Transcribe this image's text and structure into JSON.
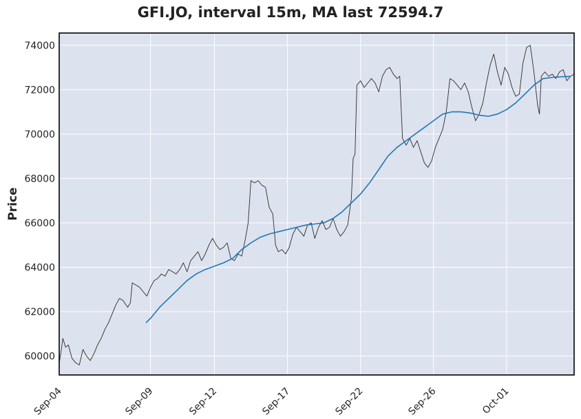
{
  "chart_data": {
    "type": "line",
    "title": "GFI.JO, interval 15m, MA last 72594.7",
    "ylabel": "Price",
    "xlabel": "",
    "ylim": [
      59150,
      74550
    ],
    "grid": true,
    "x_tick_labels": [
      "Sep-04",
      "Sep-09",
      "Sep-12",
      "Sep-17",
      "Sep-22",
      "Sep-26",
      "Oct-01"
    ],
    "y_tick_labels": [
      "60000",
      "62000",
      "64000",
      "66000",
      "68000",
      "70000",
      "72000",
      "74000"
    ],
    "y_ticks": [
      60000,
      62000,
      64000,
      66000,
      68000,
      70000,
      72000,
      74000
    ],
    "colors": {
      "background": "#dde2ef",
      "price": "#2b2b2b",
      "ma": "#1f77b4",
      "grid": "#ffffff",
      "frame": "#000000"
    },
    "series": [
      {
        "role": "price",
        "points": [
          [
            0,
            59700
          ],
          [
            0.1,
            60200
          ],
          [
            0.2,
            60800
          ],
          [
            0.35,
            60400
          ],
          [
            0.5,
            60500
          ],
          [
            0.7,
            59900
          ],
          [
            0.9,
            59700
          ],
          [
            1.1,
            59600
          ],
          [
            1.3,
            60300
          ],
          [
            1.5,
            60000
          ],
          [
            1.7,
            59800
          ],
          [
            1.9,
            60100
          ],
          [
            2.1,
            60500
          ],
          [
            2.3,
            60800
          ],
          [
            2.5,
            61200
          ],
          [
            2.7,
            61500
          ],
          [
            2.9,
            61900
          ],
          [
            3.1,
            62300
          ],
          [
            3.3,
            62600
          ],
          [
            3.5,
            62500
          ],
          [
            3.75,
            62200
          ],
          [
            3.9,
            62400
          ],
          [
            4.0,
            63300
          ],
          [
            4.2,
            63200
          ],
          [
            4.4,
            63100
          ],
          [
            4.6,
            62900
          ],
          [
            4.8,
            62700
          ],
          [
            5.0,
            63100
          ],
          [
            5.2,
            63400
          ],
          [
            5.4,
            63500
          ],
          [
            5.6,
            63700
          ],
          [
            5.8,
            63600
          ],
          [
            6.0,
            63900
          ],
          [
            6.2,
            63800
          ],
          [
            6.4,
            63700
          ],
          [
            6.6,
            63900
          ],
          [
            6.8,
            64200
          ],
          [
            7.0,
            63800
          ],
          [
            7.2,
            64300
          ],
          [
            7.4,
            64500
          ],
          [
            7.6,
            64700
          ],
          [
            7.8,
            64300
          ],
          [
            8.0,
            64600
          ],
          [
            8.2,
            65000
          ],
          [
            8.4,
            65300
          ],
          [
            8.6,
            65000
          ],
          [
            8.8,
            64800
          ],
          [
            9.0,
            64900
          ],
          [
            9.2,
            65100
          ],
          [
            9.4,
            64400
          ],
          [
            9.6,
            64300
          ],
          [
            9.8,
            64600
          ],
          [
            10.0,
            64500
          ],
          [
            10.2,
            65300
          ],
          [
            10.35,
            66000
          ],
          [
            10.5,
            67900
          ],
          [
            10.7,
            67800
          ],
          [
            10.9,
            67900
          ],
          [
            11.1,
            67700
          ],
          [
            11.3,
            67600
          ],
          [
            11.5,
            66700
          ],
          [
            11.7,
            66400
          ],
          [
            11.85,
            65000
          ],
          [
            12.0,
            64700
          ],
          [
            12.2,
            64800
          ],
          [
            12.4,
            64600
          ],
          [
            12.6,
            64900
          ],
          [
            12.8,
            65500
          ],
          [
            13.0,
            65800
          ],
          [
            13.2,
            65600
          ],
          [
            13.4,
            65400
          ],
          [
            13.6,
            65900
          ],
          [
            13.8,
            66000
          ],
          [
            14.0,
            65300
          ],
          [
            14.2,
            65800
          ],
          [
            14.4,
            66100
          ],
          [
            14.6,
            65700
          ],
          [
            14.8,
            65800
          ],
          [
            15.0,
            66200
          ],
          [
            15.2,
            65700
          ],
          [
            15.4,
            65400
          ],
          [
            15.6,
            65600
          ],
          [
            15.8,
            65900
          ],
          [
            16.0,
            67100
          ],
          [
            16.1,
            68900
          ],
          [
            16.2,
            69100
          ],
          [
            16.3,
            72200
          ],
          [
            16.5,
            72400
          ],
          [
            16.7,
            72100
          ],
          [
            16.9,
            72300
          ],
          [
            17.1,
            72500
          ],
          [
            17.3,
            72300
          ],
          [
            17.5,
            71900
          ],
          [
            17.7,
            72600
          ],
          [
            17.9,
            72900
          ],
          [
            18.1,
            73000
          ],
          [
            18.3,
            72700
          ],
          [
            18.5,
            72500
          ],
          [
            18.65,
            72600
          ],
          [
            18.8,
            69800
          ],
          [
            19.0,
            69500
          ],
          [
            19.2,
            69800
          ],
          [
            19.4,
            69400
          ],
          [
            19.6,
            69700
          ],
          [
            19.8,
            69200
          ],
          [
            20.0,
            68700
          ],
          [
            20.2,
            68500
          ],
          [
            20.4,
            68800
          ],
          [
            20.6,
            69400
          ],
          [
            20.8,
            69800
          ],
          [
            21.0,
            70200
          ],
          [
            21.2,
            71000
          ],
          [
            21.4,
            72500
          ],
          [
            21.6,
            72400
          ],
          [
            21.8,
            72200
          ],
          [
            22.0,
            72000
          ],
          [
            22.2,
            72300
          ],
          [
            22.4,
            71900
          ],
          [
            22.6,
            71200
          ],
          [
            22.8,
            70600
          ],
          [
            23.0,
            70900
          ],
          [
            23.2,
            71400
          ],
          [
            23.4,
            72300
          ],
          [
            23.6,
            73100
          ],
          [
            23.8,
            73600
          ],
          [
            24.0,
            72800
          ],
          [
            24.2,
            72200
          ],
          [
            24.4,
            73000
          ],
          [
            24.6,
            72700
          ],
          [
            24.8,
            72100
          ],
          [
            25.0,
            71700
          ],
          [
            25.2,
            71800
          ],
          [
            25.4,
            73200
          ],
          [
            25.6,
            73900
          ],
          [
            25.8,
            74000
          ],
          [
            26.0,
            72800
          ],
          [
            26.2,
            71300
          ],
          [
            26.3,
            70900
          ],
          [
            26.4,
            72600
          ],
          [
            26.6,
            72800
          ],
          [
            26.8,
            72600
          ],
          [
            27.0,
            72700
          ],
          [
            27.2,
            72500
          ],
          [
            27.4,
            72800
          ],
          [
            27.6,
            72900
          ],
          [
            27.8,
            72400
          ],
          [
            28.0,
            72600
          ],
          [
            28.2,
            72700
          ]
        ]
      },
      {
        "role": "moving-average",
        "points": [
          [
            4.75,
            61500
          ],
          [
            5.0,
            61700
          ],
          [
            5.5,
            62200
          ],
          [
            6.0,
            62600
          ],
          [
            6.5,
            63000
          ],
          [
            7.0,
            63400
          ],
          [
            7.5,
            63700
          ],
          [
            8.0,
            63900
          ],
          [
            8.5,
            64050
          ],
          [
            9.0,
            64200
          ],
          [
            9.5,
            64400
          ],
          [
            10.0,
            64800
          ],
          [
            10.5,
            65100
          ],
          [
            11.0,
            65350
          ],
          [
            11.5,
            65500
          ],
          [
            12.0,
            65600
          ],
          [
            12.5,
            65700
          ],
          [
            13.0,
            65800
          ],
          [
            13.5,
            65900
          ],
          [
            14.0,
            65950
          ],
          [
            14.5,
            66000
          ],
          [
            15.0,
            66200
          ],
          [
            15.5,
            66500
          ],
          [
            16.0,
            66900
          ],
          [
            16.5,
            67300
          ],
          [
            17.0,
            67800
          ],
          [
            17.5,
            68400
          ],
          [
            18.0,
            69000
          ],
          [
            18.5,
            69400
          ],
          [
            19.0,
            69700
          ],
          [
            19.5,
            70000
          ],
          [
            20.0,
            70300
          ],
          [
            20.5,
            70600
          ],
          [
            21.0,
            70900
          ],
          [
            21.5,
            71000
          ],
          [
            22.0,
            71000
          ],
          [
            22.5,
            70950
          ],
          [
            23.0,
            70850
          ],
          [
            23.5,
            70800
          ],
          [
            24.0,
            70900
          ],
          [
            24.5,
            71100
          ],
          [
            25.0,
            71400
          ],
          [
            25.5,
            71800
          ],
          [
            26.0,
            72200
          ],
          [
            26.5,
            72500
          ],
          [
            27.0,
            72550
          ],
          [
            27.5,
            72580
          ],
          [
            28.0,
            72594.7
          ]
        ]
      }
    ]
  }
}
